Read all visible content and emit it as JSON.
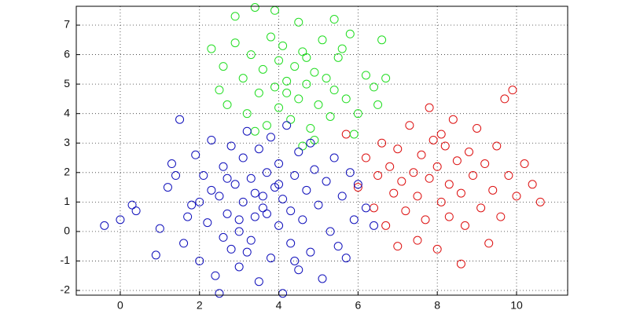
{
  "chart_data": {
    "type": "scatter",
    "xlim": [
      -1.11,
      11.29
    ],
    "ylim": [
      -2.16,
      7.64
    ],
    "xticks": [
      0,
      2,
      4,
      6,
      8,
      10
    ],
    "yticks": [
      -2,
      -1,
      0,
      1,
      2,
      3,
      4,
      5,
      6,
      7
    ],
    "grid": true,
    "series": [
      {
        "color": "#dd1111",
        "x": [
          5.7,
          6.0,
          6.2,
          6.4,
          6.5,
          6.6,
          6.7,
          6.8,
          6.9,
          7.0,
          7.0,
          7.1,
          7.2,
          7.3,
          7.4,
          7.5,
          7.5,
          7.6,
          7.7,
          7.8,
          7.8,
          7.9,
          8.0,
          8.0,
          8.1,
          8.2,
          8.3,
          8.3,
          8.4,
          8.5,
          8.6,
          8.6,
          8.7,
          8.8,
          8.9,
          9.0,
          9.1,
          9.2,
          9.3,
          9.4,
          9.5,
          9.6,
          9.8,
          9.9,
          9.7,
          10.0,
          10.2,
          10.6,
          10.4,
          8.1
        ],
        "values": [
          3.3,
          1.5,
          2.5,
          0.8,
          1.9,
          3.0,
          0.2,
          2.2,
          1.3,
          -0.5,
          2.8,
          1.7,
          0.7,
          3.6,
          2.0,
          -0.3,
          1.2,
          2.6,
          0.4,
          4.2,
          1.8,
          3.1,
          -0.6,
          2.2,
          1.0,
          2.9,
          0.5,
          1.6,
          3.8,
          2.4,
          -1.1,
          1.3,
          0.2,
          2.7,
          1.9,
          3.5,
          0.8,
          2.3,
          -0.4,
          1.4,
          2.9,
          0.5,
          1.9,
          4.8,
          4.5,
          1.2,
          2.3,
          1.0,
          1.6,
          3.3
        ]
      },
      {
        "color": "#22dd22",
        "x": [
          2.9,
          3.4,
          3.9,
          4.5,
          5.4,
          5.8,
          2.3,
          2.6,
          2.5,
          2.7,
          2.9,
          3.1,
          3.2,
          3.3,
          3.5,
          3.6,
          3.7,
          3.8,
          3.9,
          4.0,
          4.0,
          4.1,
          4.2,
          4.3,
          4.4,
          4.5,
          4.6,
          4.7,
          4.8,
          4.9,
          5.0,
          5.1,
          5.2,
          5.3,
          5.4,
          5.5,
          5.7,
          5.9,
          6.0,
          6.2,
          6.4,
          6.6,
          6.7,
          6.5,
          4.6,
          4.9,
          3.4,
          5.6,
          4.2,
          4.7
        ],
        "values": [
          7.3,
          7.6,
          7.5,
          7.1,
          7.2,
          6.7,
          6.2,
          5.6,
          4.8,
          4.3,
          6.4,
          5.2,
          4.0,
          6.0,
          4.7,
          5.5,
          3.6,
          6.6,
          4.9,
          5.8,
          4.2,
          6.3,
          5.1,
          3.8,
          5.6,
          4.5,
          6.1,
          5.0,
          3.5,
          5.4,
          4.3,
          6.5,
          5.2,
          3.9,
          4.8,
          5.9,
          4.5,
          3.3,
          4.0,
          5.3,
          4.9,
          6.5,
          5.2,
          4.3,
          2.9,
          3.1,
          3.4,
          6.2,
          4.7,
          5.9
        ]
      },
      {
        "color": "#1010bb",
        "x": [
          -0.4,
          0.0,
          0.3,
          0.4,
          0.9,
          1.0,
          1.2,
          1.3,
          1.5,
          1.6,
          1.8,
          1.9,
          2.0,
          2.1,
          2.2,
          2.3,
          2.4,
          2.5,
          2.5,
          2.6,
          2.7,
          2.8,
          2.8,
          2.9,
          3.0,
          3.0,
          3.1,
          3.1,
          3.2,
          3.3,
          3.3,
          3.4,
          3.5,
          3.5,
          3.6,
          3.6,
          3.7,
          3.8,
          3.8,
          3.9,
          4.0,
          4.0,
          4.1,
          4.1,
          4.2,
          4.3,
          4.3,
          4.4,
          4.5,
          4.5,
          4.6,
          4.7,
          4.8,
          4.8,
          4.9,
          5.0,
          5.1,
          5.2,
          5.3,
          5.4,
          5.5,
          5.6,
          5.8,
          5.9,
          6.0,
          6.2,
          6.4,
          2.0,
          2.3,
          2.7,
          3.0,
          3.4,
          3.7,
          4.0,
          2.6,
          3.2,
          1.7,
          4.4,
          5.7,
          1.4
        ],
        "values": [
          0.2,
          0.4,
          0.9,
          0.7,
          -0.8,
          0.1,
          1.5,
          2.3,
          3.8,
          -0.4,
          0.9,
          2.6,
          -1.0,
          1.9,
          0.3,
          3.1,
          -1.5,
          -2.1,
          1.2,
          2.2,
          0.6,
          -0.6,
          2.9,
          1.6,
          -1.2,
          0.0,
          2.5,
          1.0,
          3.4,
          -0.3,
          1.8,
          0.5,
          2.8,
          -1.7,
          1.2,
          0.8,
          2.0,
          -0.9,
          3.2,
          1.5,
          0.2,
          2.3,
          -2.1,
          1.1,
          3.6,
          0.7,
          -0.4,
          1.9,
          2.7,
          -1.3,
          0.4,
          1.4,
          3.0,
          -0.7,
          2.1,
          0.9,
          -1.6,
          1.7,
          0.0,
          2.5,
          -0.5,
          1.2,
          2.0,
          0.4,
          1.6,
          0.8,
          0.2,
          1.0,
          1.4,
          1.8,
          0.4,
          1.3,
          0.6,
          1.6,
          -0.2,
          -0.7,
          0.5,
          -1.0,
          -0.9,
          1.9
        ]
      }
    ]
  }
}
